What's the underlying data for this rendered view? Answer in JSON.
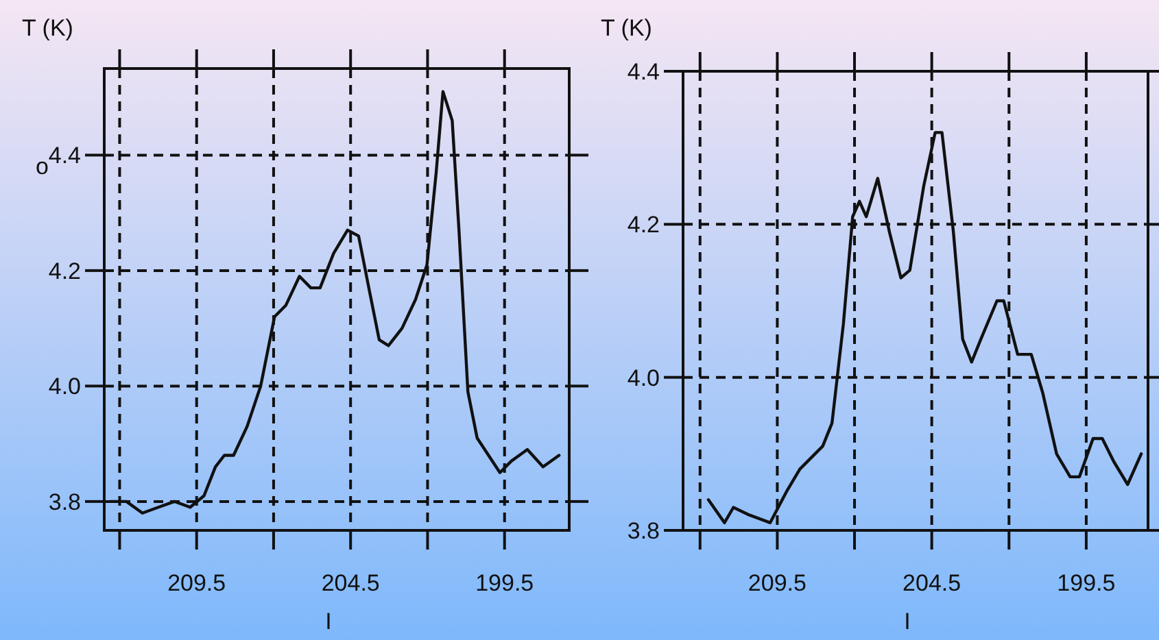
{
  "chart_data": [
    {
      "type": "line",
      "xlabel": "I",
      "ylabel": "T (K)",
      "annotations": [
        "o"
      ],
      "grid": true,
      "line_style": "solid",
      "xlim": [
        212.5,
        197.4
      ],
      "ylim": [
        3.75,
        4.55
      ],
      "xticks": [
        {
          "value": 212,
          "label": null
        },
        209.5,
        {
          "value": 207,
          "label": null
        },
        204.5,
        {
          "value": 202,
          "label": null
        },
        199.5
      ],
      "yticks": [
        3.8,
        {
          "value": 4,
          "label": "4.0"
        },
        4.2,
        4.4
      ],
      "series": [
        {
          "color": "#111111",
          "x": [
            212.3,
            211.78,
            211.26,
            210.74,
            210.22,
            209.71,
            209.26,
            208.89,
            208.6,
            208.3,
            207.86,
            207.42,
            206.97,
            206.6,
            206.16,
            205.79,
            205.49,
            205.05,
            204.6,
            204.24,
            203.87,
            203.57,
            203.27,
            202.83,
            202.39,
            202.02,
            201.72,
            201.5,
            201.2,
            200.98,
            200.69,
            200.39,
            200.02,
            199.65,
            199.28,
            198.76,
            198.25,
            197.73
          ],
          "values": [
            3.8,
            3.8,
            3.78,
            3.79,
            3.8,
            3.79,
            3.81,
            3.86,
            3.88,
            3.88,
            3.93,
            4.0,
            4.12,
            4.14,
            4.19,
            4.17,
            4.17,
            4.23,
            4.27,
            4.26,
            4.16,
            4.08,
            4.07,
            4.1,
            4.15,
            4.21,
            4.37,
            4.51,
            4.46,
            4.27,
            3.99,
            3.91,
            3.88,
            3.85,
            3.87,
            3.89,
            3.86,
            3.88
          ]
        }
      ]
    },
    {
      "type": "line",
      "xlabel": "I",
      "ylabel": "T (K)",
      "grid": true,
      "line_style": "solid",
      "xlim": [
        212.55,
        197.5
      ],
      "ylim": [
        3.8,
        4.4
      ],
      "xticks": [
        {
          "value": 212,
          "label": null
        },
        209.5,
        {
          "value": 207,
          "label": null
        },
        204.5,
        {
          "value": 202,
          "label": null
        },
        199.5
      ],
      "yticks": [
        3.8,
        {
          "value": 4,
          "label": "4.0"
        },
        4.2,
        4.4
      ],
      "series": [
        {
          "color": "#111111",
          "x": [
            211.73,
            211.21,
            210.92,
            210.4,
            209.73,
            209.21,
            208.77,
            208.03,
            207.73,
            207.36,
            207.06,
            206.84,
            206.62,
            206.25,
            205.87,
            205.5,
            205.21,
            204.76,
            204.39,
            204.17,
            203.8,
            203.5,
            203.21,
            202.91,
            202.39,
            202.17,
            201.72,
            201.28,
            200.91,
            200.46,
            200.02,
            199.72,
            199.28,
            198.98,
            198.61,
            198.16,
            197.72
          ],
          "values": [
            3.84,
            3.81,
            3.83,
            3.82,
            3.81,
            3.85,
            3.88,
            3.91,
            3.94,
            4.07,
            4.21,
            4.23,
            4.21,
            4.26,
            4.19,
            4.13,
            4.14,
            4.25,
            4.32,
            4.32,
            4.19,
            4.05,
            4.02,
            4.05,
            4.1,
            4.1,
            4.03,
            4.03,
            3.98,
            3.9,
            3.87,
            3.87,
            3.92,
            3.92,
            3.89,
            3.86,
            3.9
          ]
        }
      ]
    }
  ]
}
